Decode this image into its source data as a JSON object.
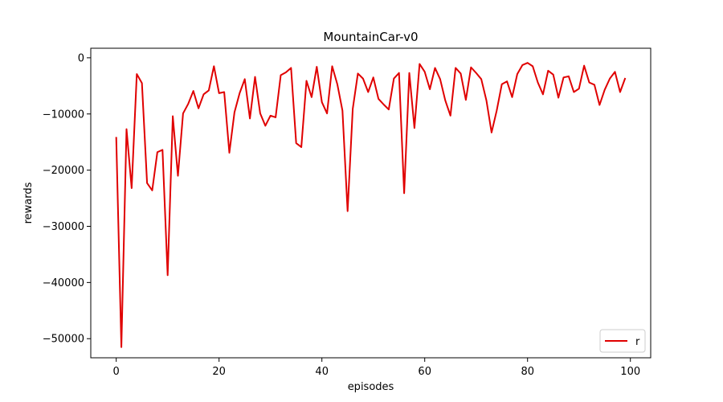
{
  "chart_data": {
    "type": "line",
    "title": "MountainCar-v0",
    "xlabel": "episodes",
    "ylabel": "rewards",
    "xlim": [
      -4.95,
      103.95
    ],
    "ylim": [
      -53400,
      1700
    ],
    "xticks": [
      0,
      20,
      40,
      60,
      80,
      100
    ],
    "yticks": [
      0,
      -10000,
      -20000,
      -30000,
      -40000,
      -50000
    ],
    "grid": false,
    "legend_position": "lower-right",
    "series": [
      {
        "name": "r",
        "color": "#e00000",
        "x": [
          0,
          1,
          2,
          3,
          4,
          5,
          6,
          7,
          8,
          9,
          10,
          11,
          12,
          13,
          14,
          15,
          16,
          17,
          18,
          19,
          20,
          21,
          22,
          23,
          24,
          25,
          26,
          27,
          28,
          29,
          30,
          31,
          32,
          33,
          34,
          35,
          36,
          37,
          38,
          39,
          40,
          41,
          42,
          43,
          44,
          45,
          46,
          47,
          48,
          49,
          50,
          51,
          52,
          53,
          54,
          55,
          56,
          57,
          58,
          59,
          60,
          61,
          62,
          63,
          64,
          65,
          66,
          67,
          68,
          69,
          70,
          71,
          72,
          73,
          74,
          75,
          76,
          77,
          78,
          79,
          80,
          81,
          82,
          83,
          84,
          85,
          86,
          87,
          88,
          89,
          90,
          91,
          92,
          93,
          94,
          95,
          96,
          97,
          98,
          99
        ],
        "values": [
          -14100,
          -51500,
          -12700,
          -23200,
          -2900,
          -4500,
          -22300,
          -23600,
          -16800,
          -16400,
          -38700,
          -10400,
          -21000,
          -9900,
          -8200,
          -5900,
          -9000,
          -6500,
          -5800,
          -1500,
          -6300,
          -6100,
          -16900,
          -9700,
          -6300,
          -3800,
          -10800,
          -3400,
          -9900,
          -12100,
          -10300,
          -10600,
          -3100,
          -2600,
          -1800,
          -15200,
          -15900,
          -4100,
          -7000,
          -1600,
          -7900,
          -9900,
          -1500,
          -4700,
          -9400,
          -27300,
          -9100,
          -2800,
          -3700,
          -6100,
          -3500,
          -7300,
          -8300,
          -9200,
          -3700,
          -2700,
          -24100,
          -2700,
          -12500,
          -1100,
          -2500,
          -5600,
          -1800,
          -3800,
          -7600,
          -10300,
          -1800,
          -2800,
          -7500,
          -1700,
          -2700,
          -3800,
          -7600,
          -13300,
          -9400,
          -4700,
          -4200,
          -7000,
          -2900,
          -1300,
          -900,
          -1500,
          -4400,
          -6500,
          -2300,
          -3000,
          -7100,
          -3500,
          -3300,
          -6100,
          -5500,
          -1400,
          -4400,
          -4800,
          -8400,
          -5700,
          -3700,
          -2500,
          -6100,
          -3600
        ]
      }
    ]
  }
}
